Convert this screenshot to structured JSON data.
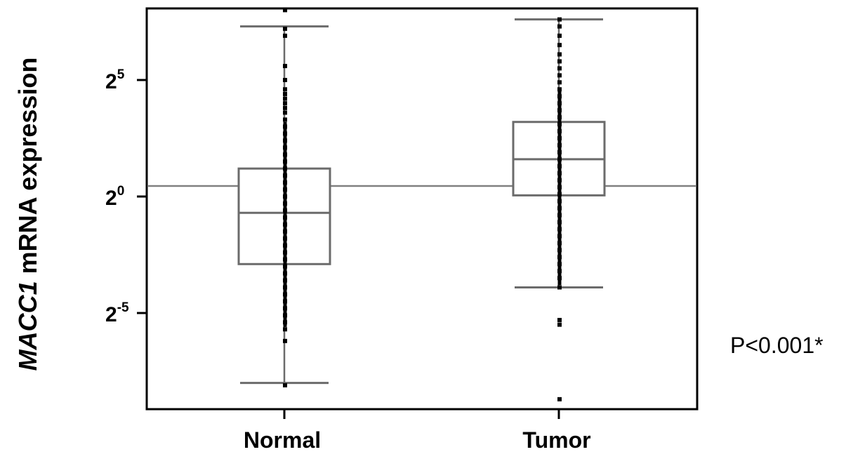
{
  "chart_data": {
    "type": "box",
    "ylabel": {
      "gene": "MACC1",
      "rest": "mRNA expression"
    },
    "y_scale": "log2",
    "y_ticks": [
      {
        "base": "2",
        "exp": "5",
        "value": 5
      },
      {
        "base": "2",
        "exp": "0",
        "value": 0
      },
      {
        "base": "2",
        "exp": "-5",
        "value": -5
      }
    ],
    "ylim": [
      -9.4,
      8.0
    ],
    "reference_line": 0.45,
    "categories": [
      "Normal",
      "Tumor"
    ],
    "series": [
      {
        "category": "Normal",
        "whisker_low": -8.0,
        "q1": -2.9,
        "median": -0.7,
        "q3": 1.2,
        "whisker_high": 7.3,
        "points": [
          8.0,
          7.2,
          6.9,
          5.6,
          5.0,
          4.6,
          4.4,
          4.2,
          4.0,
          3.8,
          3.6,
          3.3,
          3.0,
          2.7,
          2.4,
          2.1,
          1.8,
          1.5,
          1.2,
          0.9,
          0.6,
          0.3,
          0.0,
          -0.3,
          -0.6,
          -0.9,
          -1.2,
          -1.5,
          -1.8,
          -2.1,
          -2.4,
          -2.7,
          -3.0,
          -3.3,
          -3.6,
          -3.9,
          -4.2,
          -4.5,
          -4.8,
          -5.1,
          -5.4,
          -5.7,
          -6.2,
          -8.1
        ]
      },
      {
        "category": "Tumor",
        "whisker_low": -3.9,
        "q1": 0.05,
        "median": 1.6,
        "q3": 3.2,
        "whisker_high": 7.6,
        "points": [
          7.6,
          7.3,
          6.9,
          6.5,
          6.1,
          5.8,
          5.5,
          5.2,
          4.9,
          4.6,
          4.3,
          4.0,
          3.7,
          3.4,
          3.1,
          2.8,
          2.5,
          2.2,
          1.9,
          1.6,
          1.3,
          1.0,
          0.7,
          0.4,
          0.1,
          -0.2,
          -0.5,
          -0.8,
          -1.1,
          -1.4,
          -1.7,
          -2.0,
          -2.3,
          -2.6,
          -2.9,
          -3.2,
          -3.5,
          -3.9,
          -5.3,
          -5.5,
          -8.7
        ]
      }
    ],
    "annotation": "P<0.001*"
  }
}
